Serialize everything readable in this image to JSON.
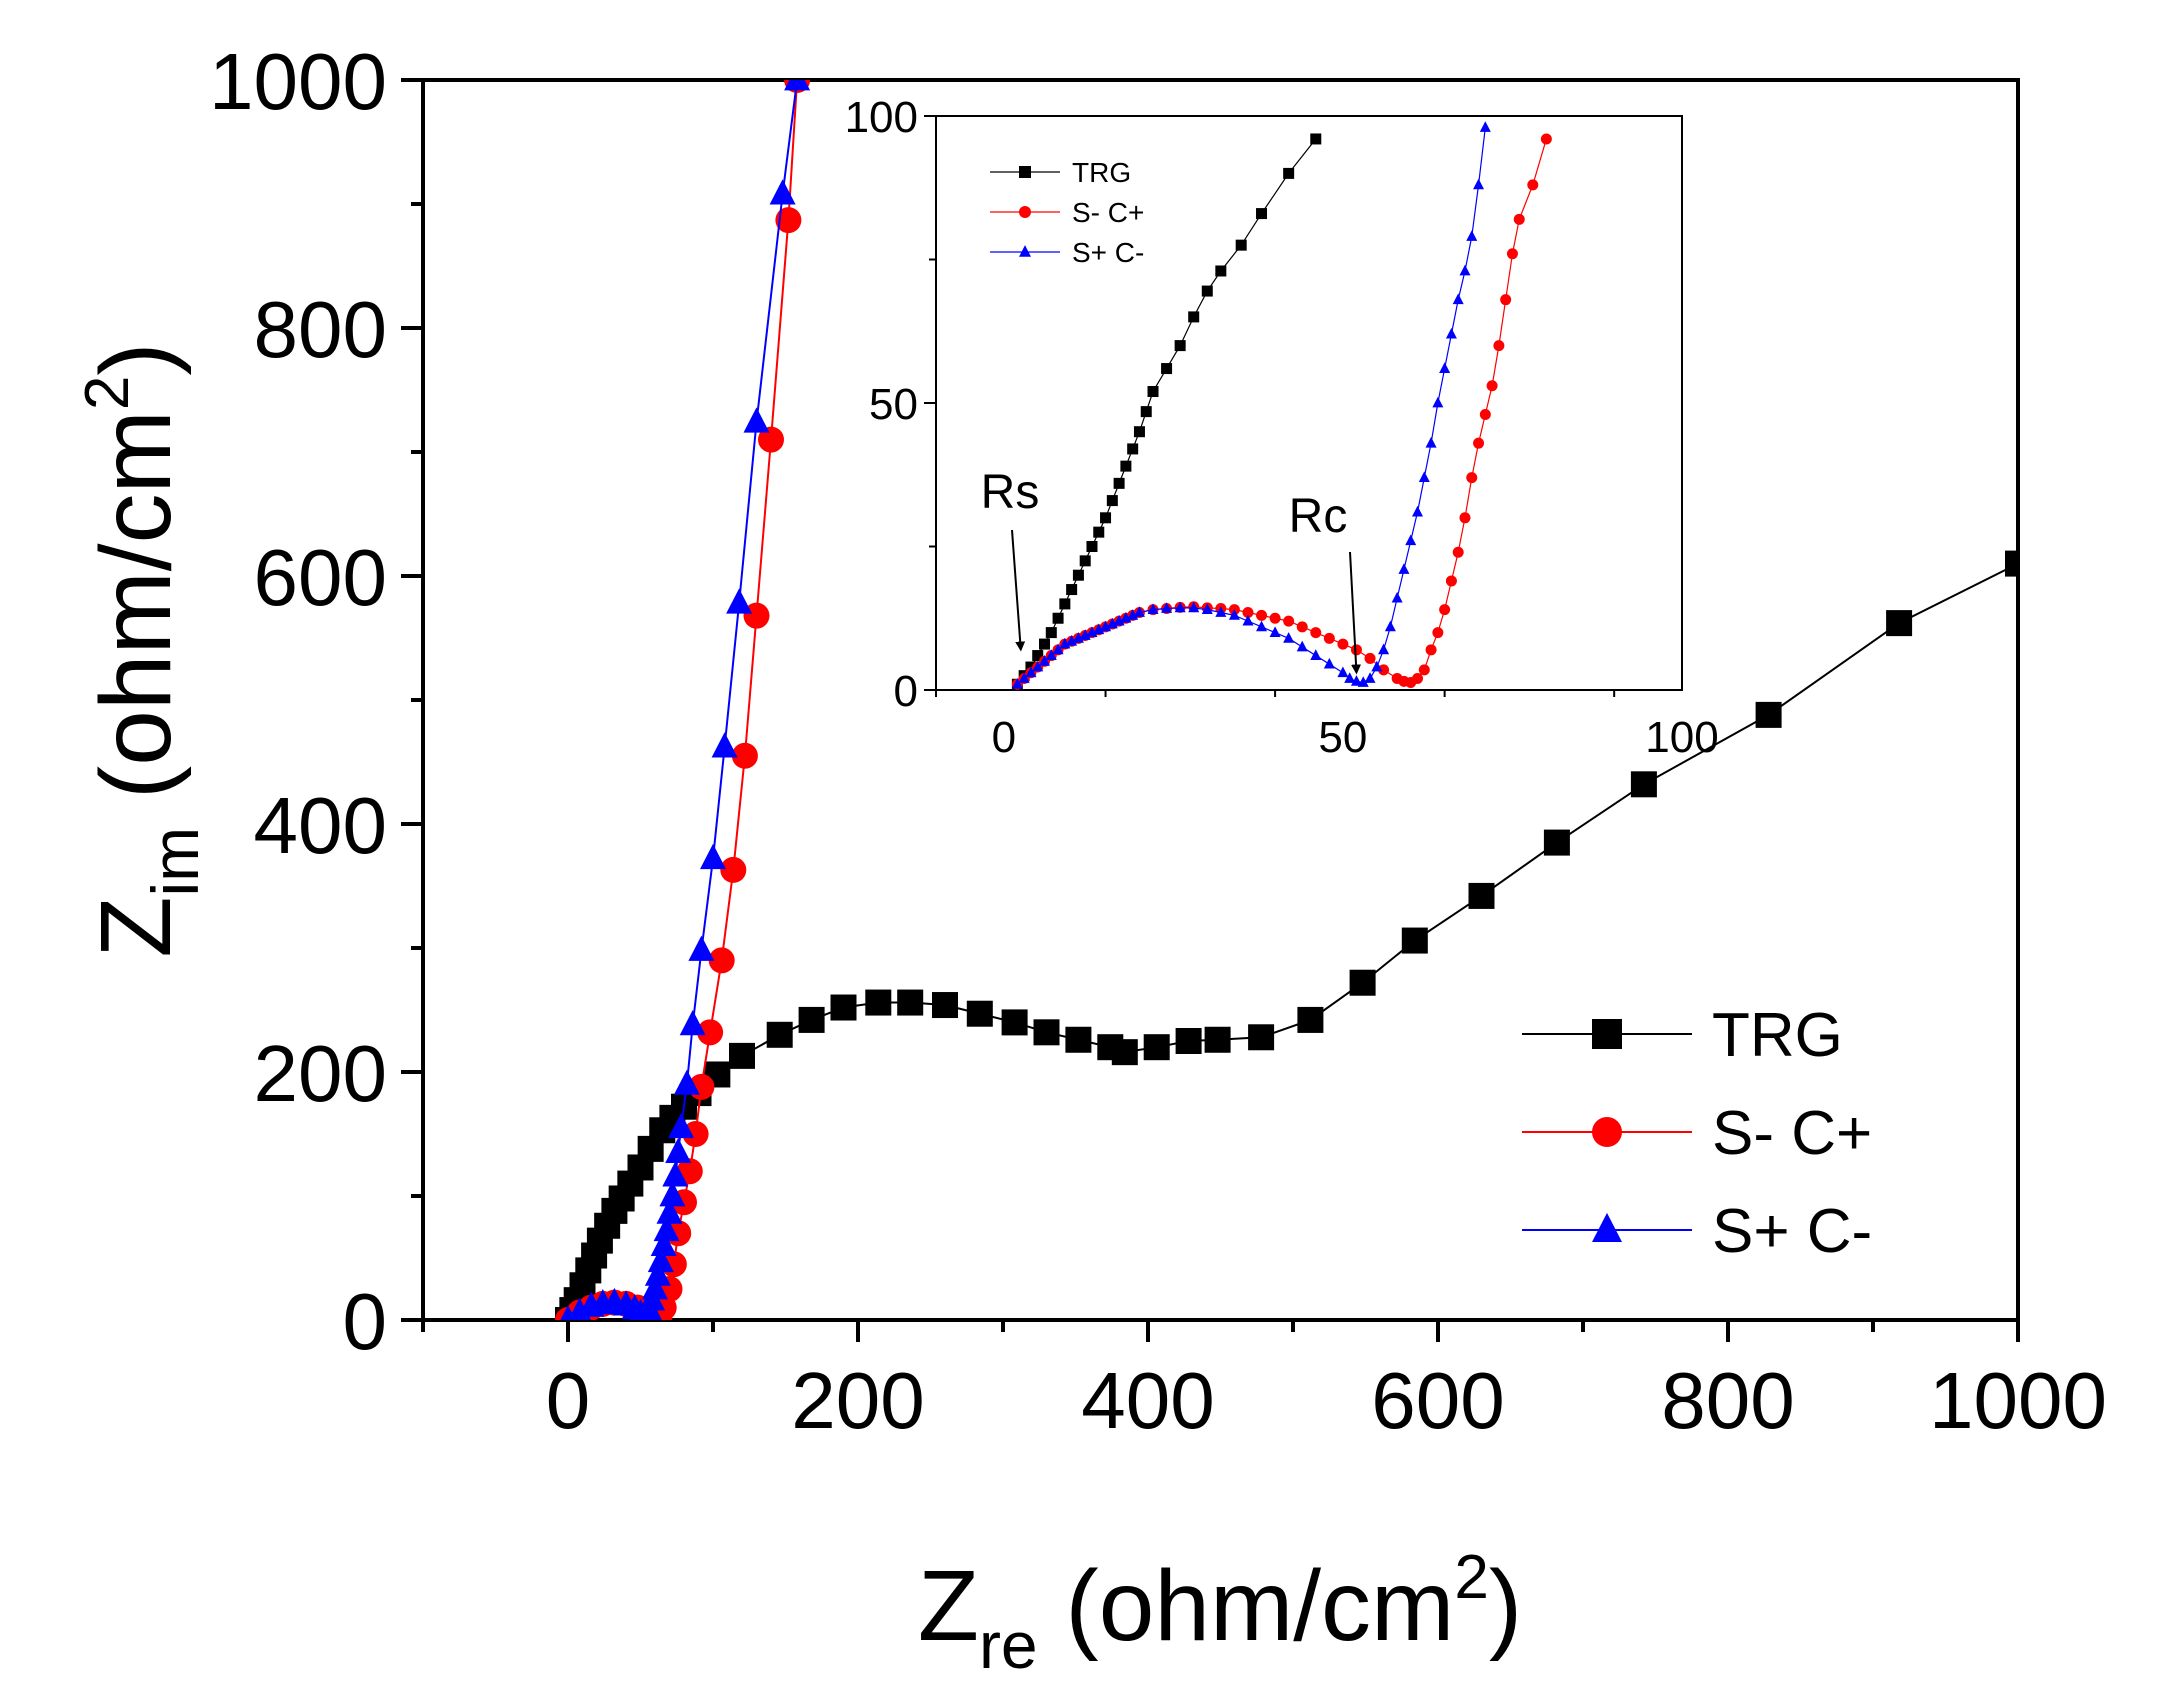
{
  "chart_data": [
    {
      "type": "scatter",
      "name": "main",
      "xlabel": "Z",
      "xlabel_sub": "re",
      "xlabel_unit_prefix": " (ohm/cm",
      "xlabel_unit_sup": "2",
      "xlabel_unit_suffix": ")",
      "ylabel": "Z",
      "ylabel_sub": "im",
      "ylabel_unit_prefix": " (ohm/cm",
      "ylabel_unit_sup": "2",
      "ylabel_unit_suffix": ")",
      "xlim": [
        -100,
        1000
      ],
      "ylim": [
        0,
        1000
      ],
      "xticks": [
        0,
        200,
        400,
        600,
        800,
        1000
      ],
      "yticks": [
        0,
        200,
        400,
        600,
        800,
        1000
      ],
      "legend_position": "bottom-right",
      "series": [
        {
          "name": "TRG",
          "color": "#000000",
          "marker": "square",
          "points": [
            [
              0,
              0
            ],
            [
              3,
              8
            ],
            [
              6,
              16
            ],
            [
              10,
              28
            ],
            [
              14,
              40
            ],
            [
              18,
              52
            ],
            [
              22,
              64
            ],
            [
              27,
              76
            ],
            [
              32,
              88
            ],
            [
              37,
              98
            ],
            [
              43,
              110
            ],
            [
              50,
              123
            ],
            [
              57,
              138
            ],
            [
              65,
              153
            ],
            [
              72,
              163
            ],
            [
              80,
              172
            ],
            [
              90,
              183
            ],
            [
              103,
              198
            ],
            [
              120,
              213
            ],
            [
              146,
              230
            ],
            [
              168,
              242
            ],
            [
              190,
              252
            ],
            [
              214,
              256
            ],
            [
              236,
              256
            ],
            [
              260,
              254
            ],
            [
              284,
              247
            ],
            [
              308,
              240
            ],
            [
              330,
              232
            ],
            [
              352,
              226
            ],
            [
              374,
              220
            ],
            [
              384,
              216
            ],
            [
              406,
              220
            ],
            [
              428,
              225
            ],
            [
              448,
              226
            ],
            [
              478,
              228
            ],
            [
              512,
              242
            ],
            [
              548,
              272
            ],
            [
              584,
              306
            ],
            [
              630,
              342
            ],
            [
              682,
              385
            ],
            [
              742,
              432
            ],
            [
              828,
              488
            ],
            [
              918,
              562
            ],
            [
              1000,
              610
            ]
          ]
        },
        {
          "name": "S- C+",
          "color": "#ff0000",
          "marker": "circle",
          "points": [
            [
              0,
              0
            ],
            [
              8,
              6
            ],
            [
              16,
              10
            ],
            [
              24,
              13
            ],
            [
              32,
              14
            ],
            [
              40,
              13
            ],
            [
              48,
              10
            ],
            [
              55,
              7
            ],
            [
              60,
              4
            ],
            [
              63,
              2
            ],
            [
              66,
              10
            ],
            [
              70,
              25
            ],
            [
              73,
              45
            ],
            [
              76,
              70
            ],
            [
              80,
              95
            ],
            [
              84,
              120
            ],
            [
              88,
              150
            ],
            [
              92,
              188
            ],
            [
              98,
              232
            ],
            [
              106,
              290
            ],
            [
              114,
              363
            ],
            [
              122,
              455
            ],
            [
              130,
              568
            ],
            [
              140,
              710
            ],
            [
              152,
              887
            ],
            [
              158,
              1000
            ]
          ]
        },
        {
          "name": "S+ C-",
          "color": "#0000ff",
          "marker": "triangle",
          "points": [
            [
              0,
              0
            ],
            [
              8,
              6
            ],
            [
              16,
              11
            ],
            [
              24,
              13
            ],
            [
              32,
              14
            ],
            [
              40,
              12
            ],
            [
              46,
              9
            ],
            [
              50,
              5
            ],
            [
              53,
              2
            ],
            [
              56,
              8
            ],
            [
              58,
              16
            ],
            [
              60,
              25
            ],
            [
              62,
              36
            ],
            [
              64,
              47
            ],
            [
              66,
              60
            ],
            [
              68,
              72
            ],
            [
              70,
              86
            ],
            [
              72,
              100
            ],
            [
              74,
              116
            ],
            [
              76,
              135
            ],
            [
              78,
              155
            ],
            [
              82,
              190
            ],
            [
              86,
              238
            ],
            [
              92,
              298
            ],
            [
              100,
              372
            ],
            [
              108,
              462
            ],
            [
              118,
              578
            ],
            [
              130,
              724
            ],
            [
              148,
              908
            ],
            [
              158,
              1000
            ]
          ]
        }
      ]
    },
    {
      "type": "scatter",
      "name": "inset",
      "xlim": [
        -10,
        100
      ],
      "ylim": [
        0,
        100
      ],
      "xticks": [
        0,
        50,
        100
      ],
      "yticks": [
        0,
        50,
        100
      ],
      "legend_position": "top-left",
      "annotations": [
        {
          "text": "Rs",
          "target": [
            2.5,
            6
          ]
        },
        {
          "text": "Rc",
          "target": [
            52,
            2
          ]
        }
      ],
      "series": [
        {
          "name": "TRG",
          "color": "#000000",
          "marker": "square",
          "points": [
            [
              2,
              1
            ],
            [
              3,
              2.5
            ],
            [
              4,
              4
            ],
            [
              5,
              6
            ],
            [
              6,
              8
            ],
            [
              7,
              10
            ],
            [
              8,
              12.5
            ],
            [
              9,
              15
            ],
            [
              10,
              17.5
            ],
            [
              11,
              20
            ],
            [
              12,
              22.5
            ],
            [
              13,
              25
            ],
            [
              14,
              27.5
            ],
            [
              15,
              30
            ],
            [
              16,
              33
            ],
            [
              17,
              36
            ],
            [
              18,
              39
            ],
            [
              19,
              42
            ],
            [
              20,
              45
            ],
            [
              21,
              48.5
            ],
            [
              22,
              52
            ],
            [
              24,
              56
            ],
            [
              26,
              60
            ],
            [
              28,
              65
            ],
            [
              30,
              69.5
            ],
            [
              32,
              73
            ],
            [
              35,
              77.5
            ],
            [
              38,
              83
            ],
            [
              42,
              90
            ],
            [
              46,
              96
            ]
          ]
        },
        {
          "name": "S- C+",
          "color": "#ff0000",
          "marker": "circle",
          "points": [
            [
              2,
              1
            ],
            [
              3,
              2
            ],
            [
              4,
              3
            ],
            [
              5,
              4
            ],
            [
              6,
              5
            ],
            [
              7,
              6
            ],
            [
              8,
              7
            ],
            [
              9,
              8
            ],
            [
              10,
              8.5
            ],
            [
              11,
              9
            ],
            [
              12,
              9.5
            ],
            [
              13,
              10
            ],
            [
              14,
              10.5
            ],
            [
              15,
              11
            ],
            [
              16,
              11.5
            ],
            [
              17,
              12
            ],
            [
              18,
              12.5
            ],
            [
              19,
              13
            ],
            [
              20,
              13.5
            ],
            [
              22,
              14
            ],
            [
              24,
              14.2
            ],
            [
              26,
              14.4
            ],
            [
              28,
              14.5
            ],
            [
              30,
              14.3
            ],
            [
              32,
              14.2
            ],
            [
              34,
              14
            ],
            [
              36,
              13.5
            ],
            [
              38,
              13
            ],
            [
              40,
              12.5
            ],
            [
              42,
              12
            ],
            [
              44,
              11
            ],
            [
              46,
              10
            ],
            [
              48,
              9
            ],
            [
              50,
              8
            ],
            [
              52,
              7
            ],
            [
              54,
              5.5
            ],
            [
              56,
              3.5
            ],
            [
              58,
              2
            ],
            [
              59,
              1.5
            ],
            [
              60,
              1.3
            ],
            [
              61,
              2
            ],
            [
              62,
              3.5
            ],
            [
              63,
              7
            ],
            [
              64,
              10
            ],
            [
              65,
              14
            ],
            [
              66,
              19
            ],
            [
              67,
              24
            ],
            [
              68,
              30
            ],
            [
              69,
              37
            ],
            [
              70,
              43
            ],
            [
              71,
              48
            ],
            [
              72,
              53
            ],
            [
              73,
              60
            ],
            [
              74,
              68
            ],
            [
              75,
              76
            ],
            [
              76,
              82
            ],
            [
              78,
              88
            ],
            [
              80,
              96
            ]
          ]
        },
        {
          "name": "S+ C-",
          "color": "#0000ff",
          "marker": "triangle",
          "points": [
            [
              2,
              1
            ],
            [
              3,
              2
            ],
            [
              4,
              3
            ],
            [
              5,
              4
            ],
            [
              6,
              5
            ],
            [
              7,
              6
            ],
            [
              8,
              7
            ],
            [
              9,
              8
            ],
            [
              10,
              8.5
            ],
            [
              11,
              9
            ],
            [
              12,
              9.5
            ],
            [
              13,
              10
            ],
            [
              14,
              10.5
            ],
            [
              15,
              11
            ],
            [
              16,
              11.5
            ],
            [
              17,
              12
            ],
            [
              18,
              12.5
            ],
            [
              19,
              13
            ],
            [
              20,
              13.5
            ],
            [
              22,
              14
            ],
            [
              24,
              14.2
            ],
            [
              26,
              14.3
            ],
            [
              28,
              14.3
            ],
            [
              30,
              14
            ],
            [
              32,
              13.5
            ],
            [
              34,
              13
            ],
            [
              36,
              12
            ],
            [
              38,
              11
            ],
            [
              40,
              10
            ],
            [
              42,
              9
            ],
            [
              44,
              7.5
            ],
            [
              46,
              6
            ],
            [
              48,
              4.5
            ],
            [
              50,
              3
            ],
            [
              51,
              2
            ],
            [
              52,
              1.5
            ],
            [
              53,
              1.3
            ],
            [
              54,
              2
            ],
            [
              55,
              4
            ],
            [
              56,
              7
            ],
            [
              57,
              11
            ],
            [
              58,
              16
            ],
            [
              59,
              21
            ],
            [
              60,
              26
            ],
            [
              61,
              31
            ],
            [
              62,
              37
            ],
            [
              63,
              43
            ],
            [
              64,
              50
            ],
            [
              65,
              56
            ],
            [
              66,
              62
            ],
            [
              67,
              68
            ],
            [
              68,
              73
            ],
            [
              69,
              79
            ],
            [
              70,
              88
            ],
            [
              71,
              98
            ]
          ]
        }
      ]
    }
  ]
}
